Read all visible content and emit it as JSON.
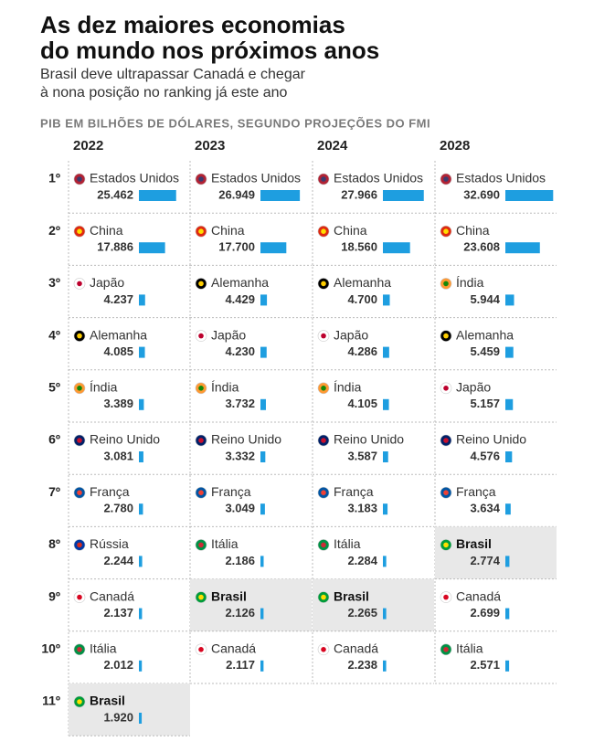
{
  "title": [
    "As dez maiores economias",
    "do mundo nos próximos anos"
  ],
  "subtitle": [
    "Brasil deve ultrapassar Canadá e chegar",
    "à nona posição no ranking já este ano"
  ],
  "axis_label": "PIB EM BILHÕES DE DÓLARES, SEGUNDO PROJEÇÕES DO FMI",
  "bar_color": "#1e9ee0",
  "ranks": [
    "1º",
    "2º",
    "3º",
    "4º",
    "5º",
    "6º",
    "7º",
    "8º",
    "9º",
    "10º",
    "11º"
  ],
  "columns": [
    {
      "year": "2022",
      "countries": [
        "Estados Unidos",
        "China",
        "Japão",
        "Alemanha",
        "Índia",
        "Reino Unido",
        "França",
        "Rússia",
        "Canadá",
        "Itália",
        "Brasil"
      ],
      "values": [
        25462,
        17886,
        4237,
        4085,
        3389,
        3081,
        2780,
        2244,
        2137,
        2012,
        1920
      ],
      "value_labels": [
        "25.462",
        "17.886",
        "4.237",
        "4.085",
        "3.389",
        "3.081",
        "2.780",
        "2.244",
        "2.137",
        "2.012",
        "1.920"
      ],
      "highlight": [
        false,
        false,
        false,
        false,
        false,
        false,
        false,
        false,
        false,
        false,
        true
      ],
      "flags": [
        [
          "#b22234",
          "#3c3b6e"
        ],
        [
          "#de2910",
          "#ffde00"
        ],
        [
          "#ffffff",
          "#bc002d"
        ],
        [
          "#000000",
          "#ffce00"
        ],
        [
          "#ff9933",
          "#138808"
        ],
        [
          "#012169",
          "#c8102e"
        ],
        [
          "#0055a4",
          "#ef4135"
        ],
        [
          "#0039a6",
          "#d52b1e"
        ],
        [
          "#ffffff",
          "#d80621"
        ],
        [
          "#009246",
          "#ce2b37"
        ],
        [
          "#009c3b",
          "#ffdf00"
        ]
      ]
    },
    {
      "year": "2023",
      "countries": [
        "Estados Unidos",
        "China",
        "Alemanha",
        "Japão",
        "Índia",
        "Reino Unido",
        "França",
        "Itália",
        "Brasil",
        "Canadá"
      ],
      "values": [
        26949,
        17700,
        4429,
        4230,
        3732,
        3332,
        3049,
        2186,
        2126,
        2117
      ],
      "value_labels": [
        "26.949",
        "17.700",
        "4.429",
        "4.230",
        "3.732",
        "3.332",
        "3.049",
        "2.186",
        "2.126",
        "2.117"
      ],
      "highlight": [
        false,
        false,
        false,
        false,
        false,
        false,
        false,
        false,
        true,
        false
      ],
      "flags": [
        [
          "#b22234",
          "#3c3b6e"
        ],
        [
          "#de2910",
          "#ffde00"
        ],
        [
          "#000000",
          "#ffce00"
        ],
        [
          "#ffffff",
          "#bc002d"
        ],
        [
          "#ff9933",
          "#138808"
        ],
        [
          "#012169",
          "#c8102e"
        ],
        [
          "#0055a4",
          "#ef4135"
        ],
        [
          "#009246",
          "#ce2b37"
        ],
        [
          "#009c3b",
          "#ffdf00"
        ],
        [
          "#ffffff",
          "#d80621"
        ]
      ]
    },
    {
      "year": "2024",
      "countries": [
        "Estados Unidos",
        "China",
        "Alemanha",
        "Japão",
        "Índia",
        "Reino Unido",
        "França",
        "Itália",
        "Brasil",
        "Canadá"
      ],
      "values": [
        27966,
        18560,
        4700,
        4286,
        4105,
        3587,
        3183,
        2284,
        2265,
        2238
      ],
      "value_labels": [
        "27.966",
        "18.560",
        "4.700",
        "4.286",
        "4.105",
        "3.587",
        "3.183",
        "2.284",
        "2.265",
        "2.238"
      ],
      "highlight": [
        false,
        false,
        false,
        false,
        false,
        false,
        false,
        false,
        true,
        false
      ],
      "flags": [
        [
          "#b22234",
          "#3c3b6e"
        ],
        [
          "#de2910",
          "#ffde00"
        ],
        [
          "#000000",
          "#ffce00"
        ],
        [
          "#ffffff",
          "#bc002d"
        ],
        [
          "#ff9933",
          "#138808"
        ],
        [
          "#012169",
          "#c8102e"
        ],
        [
          "#0055a4",
          "#ef4135"
        ],
        [
          "#009246",
          "#ce2b37"
        ],
        [
          "#009c3b",
          "#ffdf00"
        ],
        [
          "#ffffff",
          "#d80621"
        ]
      ]
    },
    {
      "year": "2028",
      "countries": [
        "Estados Unidos",
        "China",
        "Índia",
        "Alemanha",
        "Japão",
        "Reino Unido",
        "França",
        "Brasil",
        "Canadá",
        "Itália"
      ],
      "values": [
        32690,
        23608,
        5944,
        5459,
        5157,
        4576,
        3634,
        2774,
        2699,
        2571
      ],
      "value_labels": [
        "32.690",
        "23.608",
        "5.944",
        "5.459",
        "5.157",
        "4.576",
        "3.634",
        "2.774",
        "2.699",
        "2.571"
      ],
      "highlight": [
        false,
        false,
        false,
        false,
        false,
        false,
        false,
        true,
        false,
        false
      ],
      "flags": [
        [
          "#b22234",
          "#3c3b6e"
        ],
        [
          "#de2910",
          "#ffde00"
        ],
        [
          "#ff9933",
          "#138808"
        ],
        [
          "#000000",
          "#ffce00"
        ],
        [
          "#ffffff",
          "#bc002d"
        ],
        [
          "#012169",
          "#c8102e"
        ],
        [
          "#0055a4",
          "#ef4135"
        ],
        [
          "#009c3b",
          "#ffdf00"
        ],
        [
          "#ffffff",
          "#d80621"
        ],
        [
          "#009246",
          "#ce2b37"
        ]
      ]
    }
  ]
}
